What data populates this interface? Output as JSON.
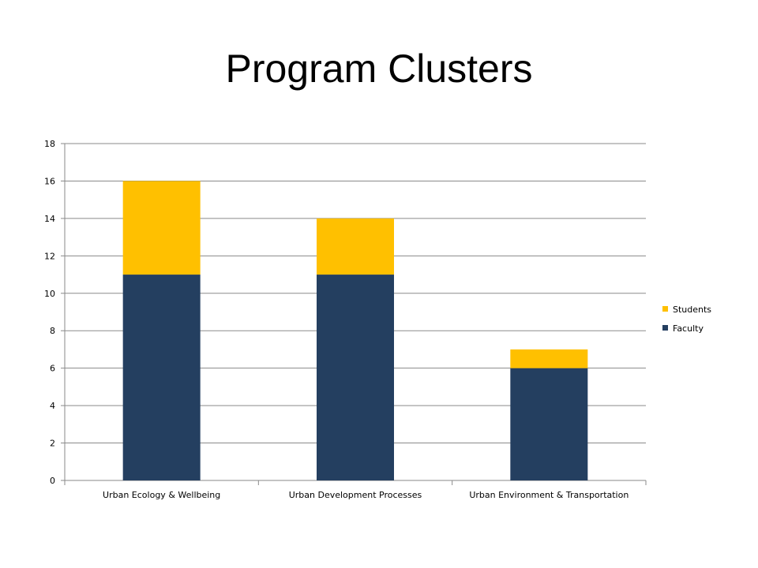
{
  "chart_data": {
    "type": "bar",
    "stacked": true,
    "title": "Program Clusters",
    "xlabel": "",
    "ylabel": "",
    "categories": [
      "Urban Ecology & Wellbeing",
      "Urban Development Processes",
      "Urban Environment & Transportation"
    ],
    "series": [
      {
        "name": "Faculty",
        "values": [
          11,
          11,
          6
        ],
        "color": "#243f60"
      },
      {
        "name": "Students",
        "values": [
          5,
          3,
          1
        ],
        "color": "#ffc000"
      }
    ],
    "ylim": [
      0,
      18
    ],
    "yticks": [
      0,
      2,
      4,
      6,
      8,
      10,
      12,
      14,
      16,
      18
    ],
    "grid": true,
    "legend": "right"
  }
}
